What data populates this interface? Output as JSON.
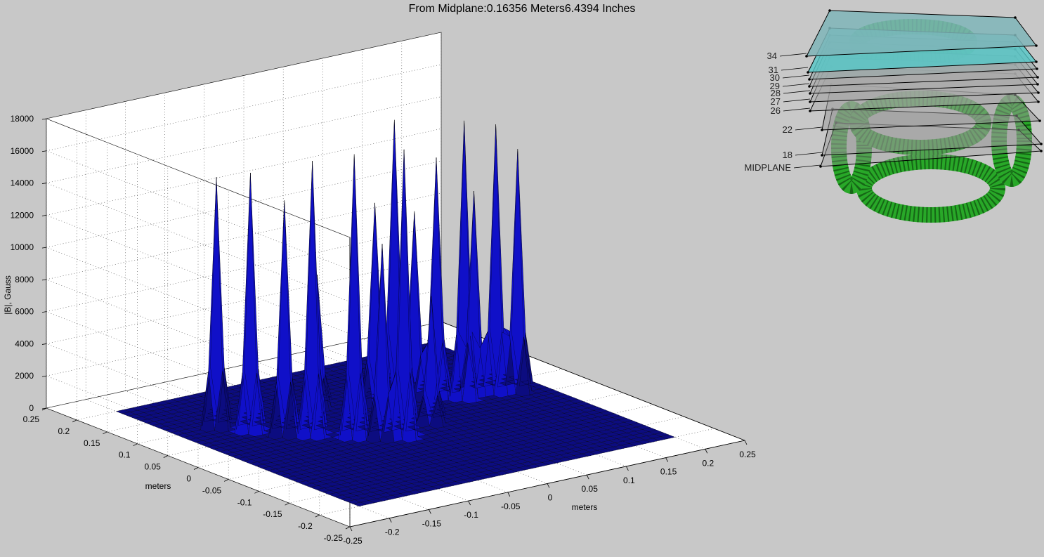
{
  "figure": {
    "title": "From Midplane:0.16356 Meters6.4394 Inches"
  },
  "chart_data": {
    "type": "surface3d",
    "title": "From Midplane:0.16356 Meters6.4394 Inches",
    "zlabel": "|B|, Gauss",
    "xlabel": "meters",
    "ylabel": "meters",
    "zlim": [
      0,
      18000
    ],
    "xlim": [
      -0.25,
      0.25
    ],
    "ylim": [
      -0.25,
      0.25
    ],
    "grid": true,
    "zticks": [
      "0",
      "2000",
      "4000",
      "6000",
      "8000",
      "10000",
      "12000",
      "14000",
      "16000",
      "18000"
    ],
    "xticks": [
      "-0.25",
      "-0.2",
      "-0.15",
      "-0.1",
      "-0.05",
      "0",
      "0.05",
      "0.1",
      "0.15",
      "0.2",
      "0.25"
    ],
    "yticks": [
      "-0.25",
      "-0.2",
      "-0.15",
      "-0.1",
      "-0.05",
      "0",
      "0.05",
      "0.1",
      "0.15",
      "0.2",
      "0.25"
    ],
    "colormap": [
      "#0c0c80",
      "#1010c8",
      "#1e1ef0",
      "#2060ff",
      "#40f0f0",
      "#802020"
    ],
    "peaks": [
      {
        "x": -0.15,
        "y": 0.1,
        "z": 15500
      },
      {
        "x": -0.13,
        "y": 0.07,
        "z": 16000
      },
      {
        "x": -0.11,
        "y": 0.04,
        "z": 14500
      },
      {
        "x": -0.09,
        "y": 0.02,
        "z": 17000
      },
      {
        "x": -0.06,
        "y": -0.01,
        "z": 17500
      },
      {
        "x": -0.04,
        "y": -0.03,
        "z": 12000
      },
      {
        "x": -0.02,
        "y": -0.04,
        "z": 17800
      },
      {
        "x": 0.02,
        "y": 0.06,
        "z": 12500
      },
      {
        "x": 0.06,
        "y": 0.08,
        "z": 17000
      },
      {
        "x": 0.07,
        "y": 0.06,
        "z": 11500
      },
      {
        "x": 0.09,
        "y": 0.05,
        "z": 14800
      },
      {
        "x": 0.11,
        "y": 0.03,
        "z": 17200
      },
      {
        "x": 0.13,
        "y": 0.04,
        "z": 12500
      },
      {
        "x": 0.15,
        "y": 0.03,
        "z": 16600
      },
      {
        "x": 0.17,
        "y": 0.02,
        "z": 15000
      },
      {
        "x": 0.03,
        "y": -0.02,
        "z": 7800
      },
      {
        "x": -0.03,
        "y": 0.09,
        "z": 8200
      }
    ]
  },
  "inset": {
    "labels": [
      "34",
      "31",
      "30",
      "29",
      "28",
      "27",
      "26",
      "22",
      "18",
      "MIDPLANE"
    ]
  }
}
